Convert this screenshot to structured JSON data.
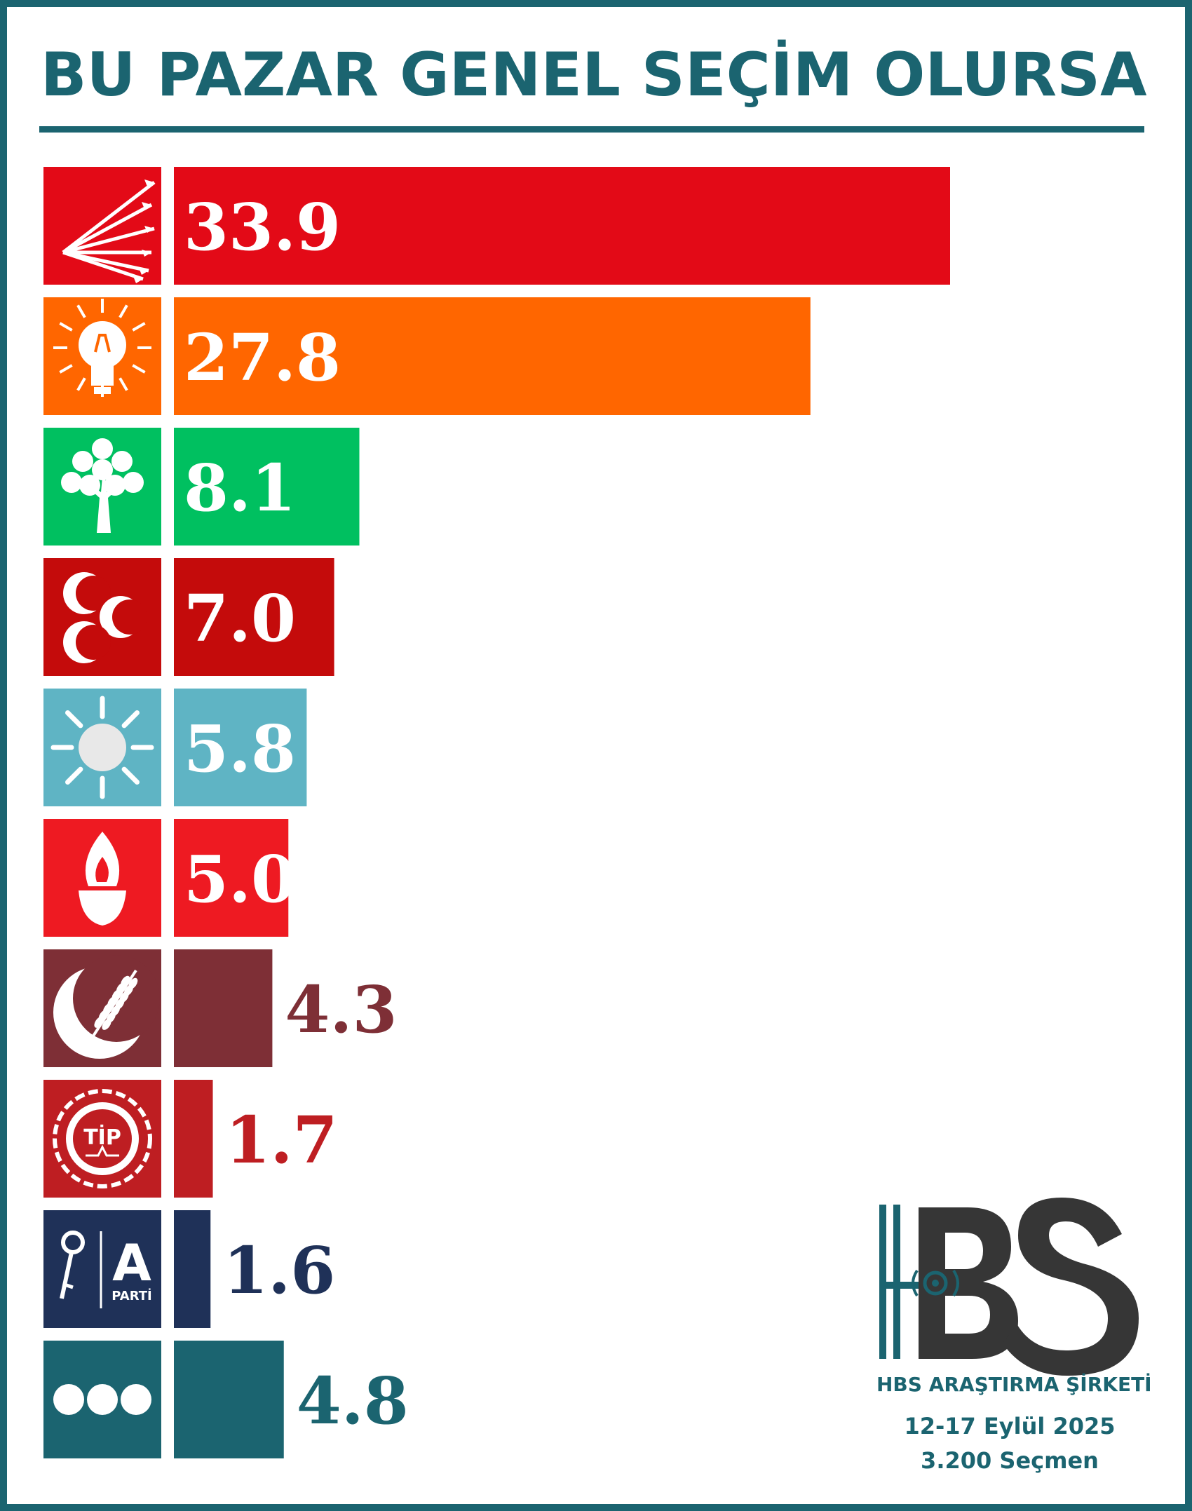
{
  "chart_data": {
    "type": "bar",
    "title": "BU PAZAR GENEL SEÇİM OLURSA",
    "xlabel": "",
    "ylabel": "",
    "xlim": [
      0,
      37
    ],
    "grid": false,
    "orientation": "horizontal",
    "categories": [
      "",
      "",
      "",
      "",
      "",
      "",
      "",
      "",
      "",
      ""
    ],
    "values": [
      33.9,
      27.8,
      8.1,
      7.0,
      5.8,
      5.0,
      4.3,
      1.7,
      1.6,
      4.8
    ],
    "value_labels": [
      "33.9",
      "27.8",
      "8.1",
      "7.0",
      "5.8",
      "5.0",
      "4.3",
      "1.7",
      "1.6",
      "4.8"
    ],
    "bar_colors": [
      "#e30a17",
      "#ff6600",
      "#00c060",
      "#c40b0b",
      "#5fb4c4",
      "#ee1a22",
      "#7e2f36",
      "#be1e22",
      "#1f3158",
      "#1b6470"
    ],
    "label_inside": [
      true,
      true,
      true,
      true,
      true,
      true,
      false,
      false,
      false,
      false
    ],
    "icons": [
      "six-arrows-icon",
      "light-bulb-icon",
      "tree-icon",
      "three-crescents-icon",
      "sun-icon",
      "torch-flame-icon",
      "crescent-wheat-icon",
      "tip-emblem-icon",
      "key-a-parti-icon",
      "ellipsis-dots-icon"
    ]
  },
  "logo": {
    "wordmark": "HBS",
    "company": "HBS ARAŞTIRMA ŞİRKETİ",
    "dates": "12-17 Eylül 2025",
    "sample": "3.200 Seçmen"
  }
}
